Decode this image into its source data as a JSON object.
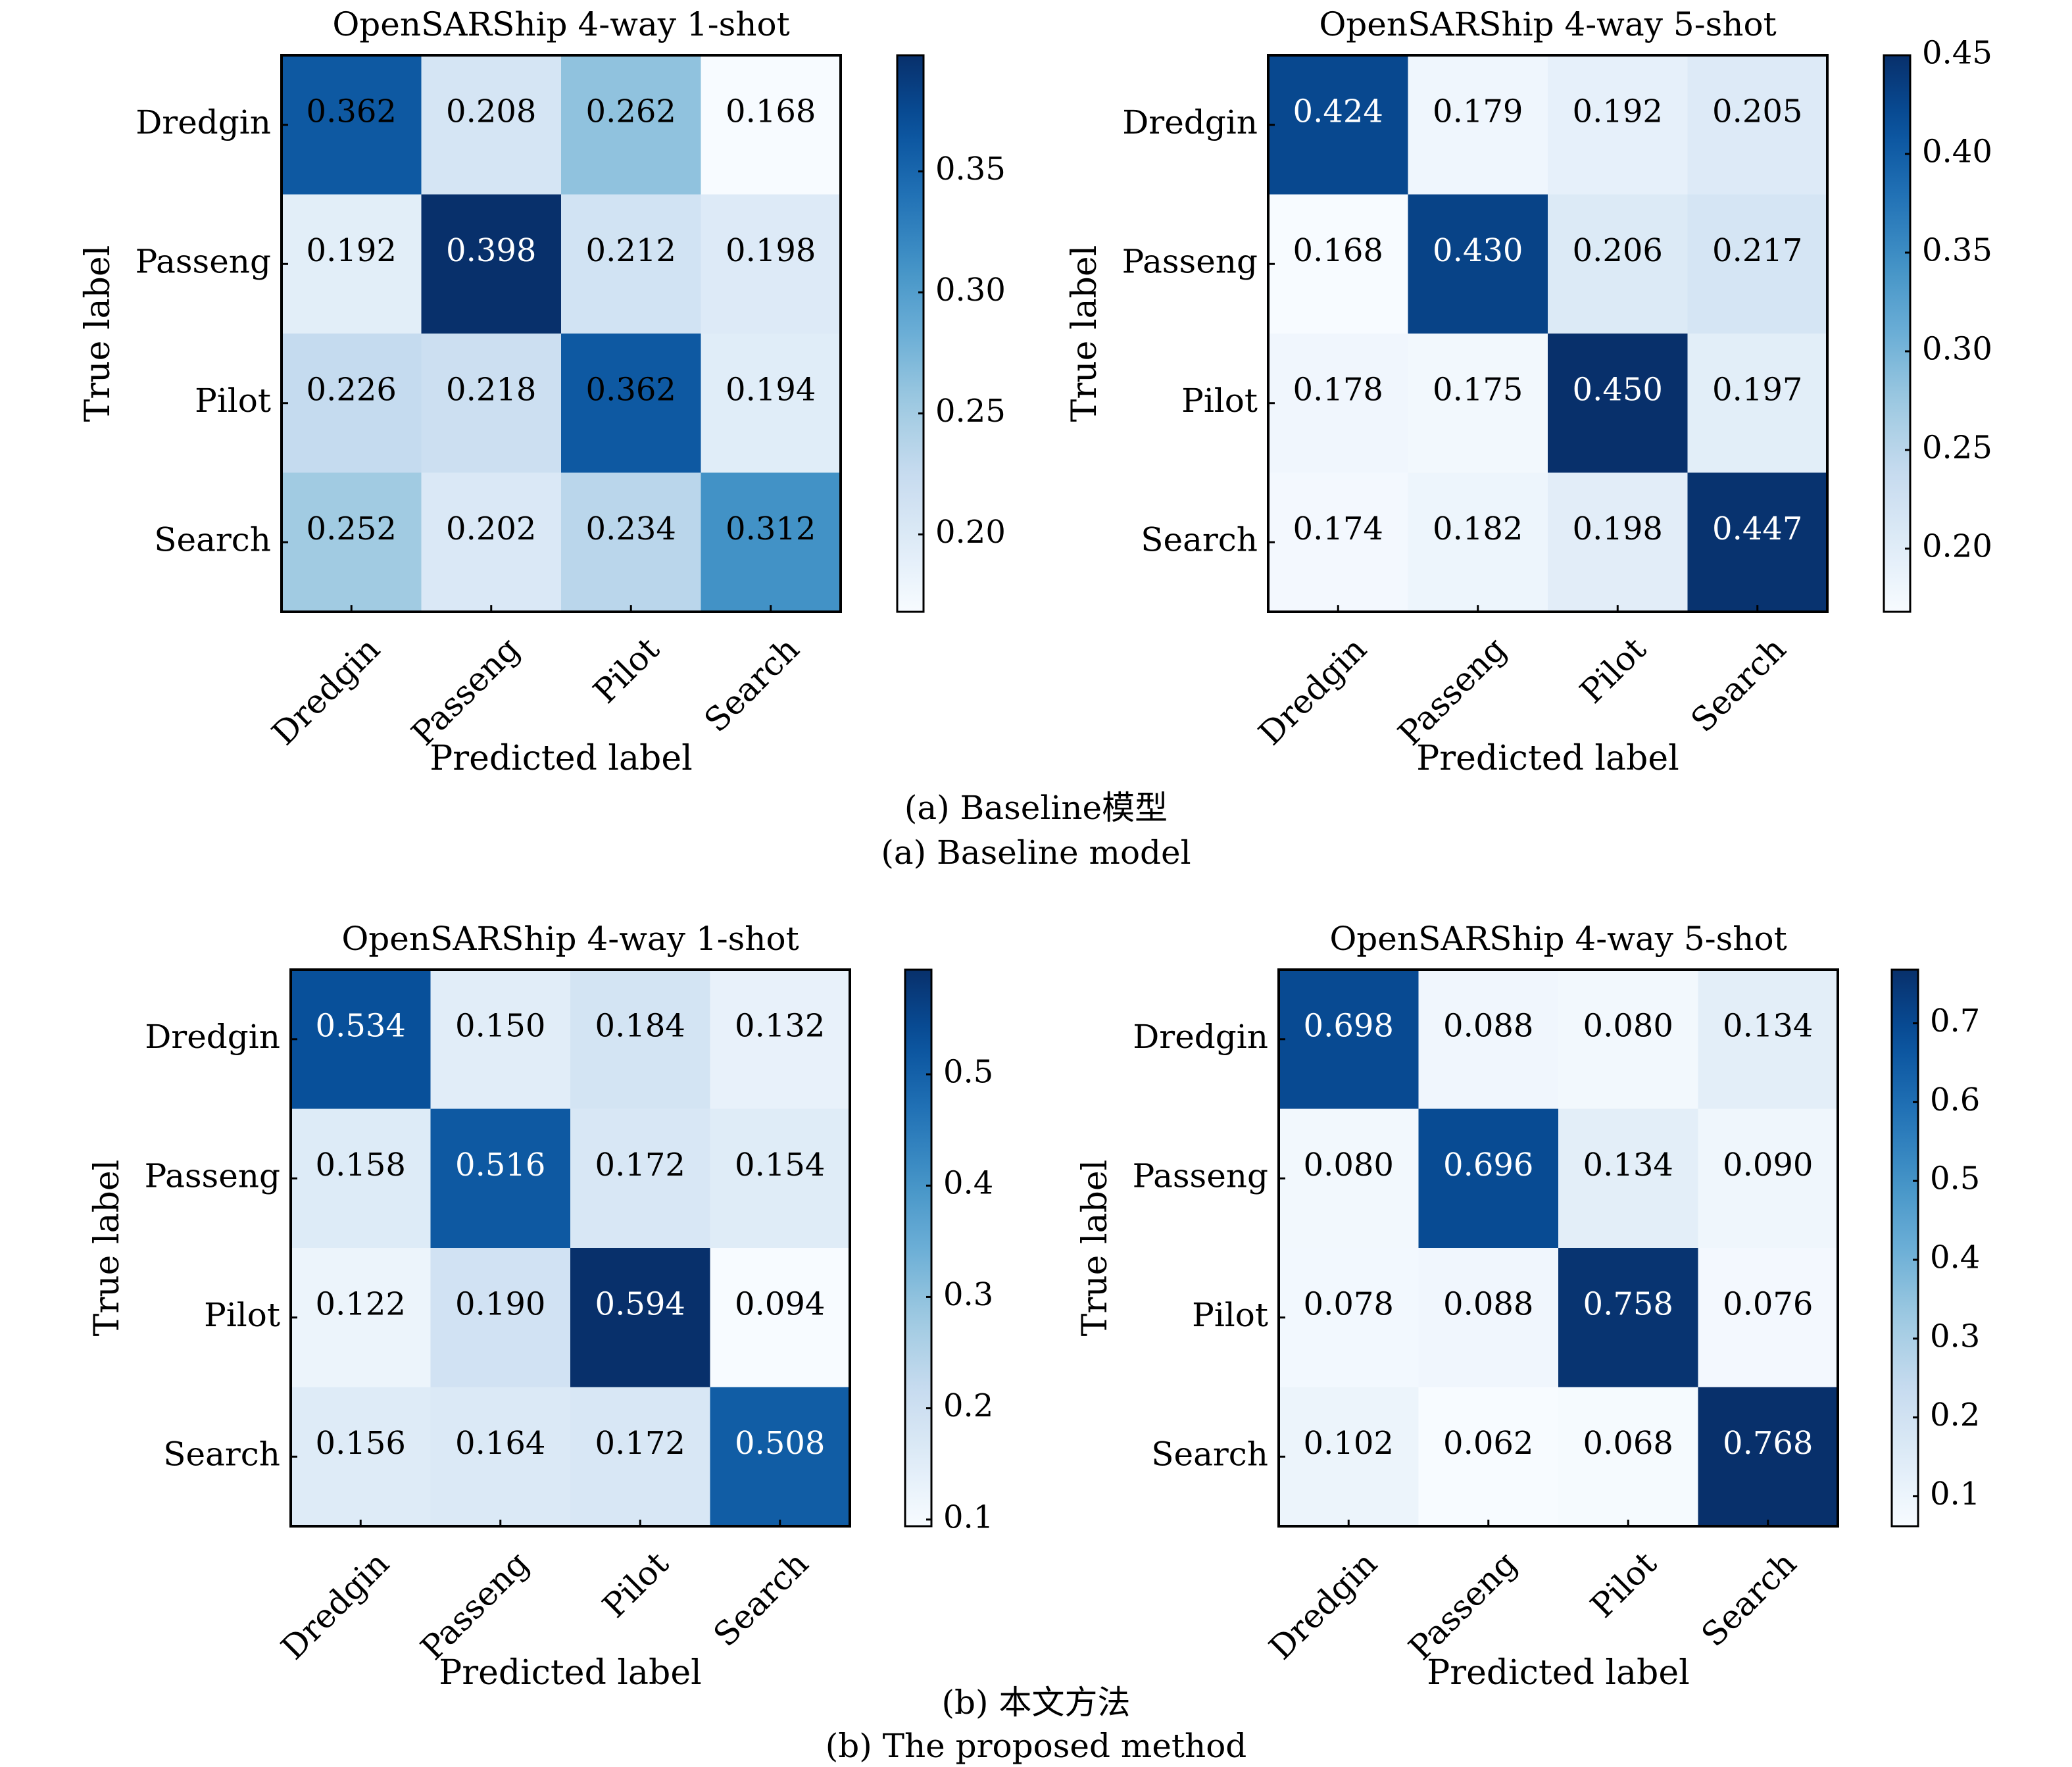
{
  "figure": {
    "group_a": {
      "caption_cn": "(a) Baseline模型",
      "caption_en": "(a) Baseline model"
    },
    "group_b": {
      "caption_cn": "(b) 本文方法",
      "caption_en": "(b) The proposed method"
    }
  },
  "chart_data": [
    {
      "type": "heatmap",
      "group": "a",
      "title": "OpenSARShip 4-way 1-shot",
      "xlabel": "Predicted label",
      "ylabel": "True label",
      "x_categories": [
        "Dredgin",
        "Passeng",
        "Pilot",
        "Search"
      ],
      "y_categories": [
        "Dredgin",
        "Passeng",
        "Pilot",
        "Search"
      ],
      "values": [
        [
          0.362,
          0.208,
          0.262,
          0.168
        ],
        [
          0.192,
          0.398,
          0.212,
          0.198
        ],
        [
          0.226,
          0.218,
          0.362,
          0.194
        ],
        [
          0.252,
          0.202,
          0.234,
          0.312
        ]
      ],
      "cell_labels": [
        [
          "0.362",
          "0.208",
          "0.262",
          "0.168"
        ],
        [
          "0.192",
          "0.398",
          "0.212",
          "0.198"
        ],
        [
          "0.226",
          "0.218",
          "0.362",
          "0.194"
        ],
        [
          "0.252",
          "0.202",
          "0.234",
          "0.312"
        ]
      ],
      "colormap": "Blues",
      "colorbar": {
        "range": [
          0.168,
          0.398
        ],
        "ticks": [
          0.2,
          0.25,
          0.3,
          0.35
        ],
        "tick_labels": [
          "0.20",
          "0.25",
          "0.30",
          "0.35"
        ]
      },
      "text_color_threshold": 0.9
    },
    {
      "type": "heatmap",
      "group": "a",
      "title": "OpenSARShip 4-way 5-shot",
      "xlabel": "Predicted label",
      "ylabel": "True label",
      "x_categories": [
        "Dredgin",
        "Passeng",
        "Pilot",
        "Search"
      ],
      "y_categories": [
        "Dredgin",
        "Passeng",
        "Pilot",
        "Search"
      ],
      "values": [
        [
          0.424,
          0.179,
          0.192,
          0.205
        ],
        [
          0.168,
          0.43,
          0.206,
          0.217
        ],
        [
          0.178,
          0.175,
          0.45,
          0.197
        ],
        [
          0.174,
          0.182,
          0.198,
          0.447
        ]
      ],
      "cell_labels": [
        [
          "0.424",
          "0.179",
          "0.192",
          "0.205"
        ],
        [
          "0.168",
          "0.430",
          "0.206",
          "0.217"
        ],
        [
          "0.178",
          "0.175",
          "0.450",
          "0.197"
        ],
        [
          "0.174",
          "0.182",
          "0.198",
          "0.447"
        ]
      ],
      "colormap": "Blues",
      "colorbar": {
        "range": [
          0.168,
          0.45
        ],
        "ticks": [
          0.2,
          0.25,
          0.3,
          0.35,
          0.4,
          0.45
        ],
        "tick_labels": [
          "0.20",
          "0.25",
          "0.30",
          "0.35",
          "0.40",
          "0.45"
        ]
      },
      "text_color_threshold": 0.9
    },
    {
      "type": "heatmap",
      "group": "b",
      "title": "OpenSARShip 4-way 1-shot",
      "xlabel": "Predicted label",
      "ylabel": "True label",
      "x_categories": [
        "Dredgin",
        "Passeng",
        "Pilot",
        "Search"
      ],
      "y_categories": [
        "Dredgin",
        "Passeng",
        "Pilot",
        "Search"
      ],
      "values": [
        [
          0.534,
          0.15,
          0.184,
          0.132
        ],
        [
          0.158,
          0.516,
          0.172,
          0.154
        ],
        [
          0.122,
          0.19,
          0.594,
          0.094
        ],
        [
          0.156,
          0.164,
          0.172,
          0.508
        ]
      ],
      "cell_labels": [
        [
          "0.534",
          "0.150",
          "0.184",
          "0.132"
        ],
        [
          "0.158",
          "0.516",
          "0.172",
          "0.154"
        ],
        [
          "0.122",
          "0.190",
          "0.594",
          "0.094"
        ],
        [
          "0.156",
          "0.164",
          "0.172",
          "0.508"
        ]
      ],
      "colormap": "Blues",
      "colorbar": {
        "range": [
          0.094,
          0.594
        ],
        "ticks": [
          0.1,
          0.2,
          0.3,
          0.4,
          0.5
        ],
        "tick_labels": [
          "0.1",
          "0.2",
          "0.3",
          "0.4",
          "0.5"
        ]
      },
      "text_color_threshold": 0.5
    },
    {
      "type": "heatmap",
      "group": "b",
      "title": "OpenSARShip 4-way 5-shot",
      "xlabel": "Predicted label",
      "ylabel": "True label",
      "x_categories": [
        "Dredgin",
        "Passeng",
        "Pilot",
        "Search"
      ],
      "y_categories": [
        "Dredgin",
        "Passeng",
        "Pilot",
        "Search"
      ],
      "values": [
        [
          0.698,
          0.088,
          0.08,
          0.134
        ],
        [
          0.08,
          0.696,
          0.134,
          0.09
        ],
        [
          0.078,
          0.088,
          0.758,
          0.076
        ],
        [
          0.102,
          0.062,
          0.068,
          0.768
        ]
      ],
      "cell_labels": [
        [
          "0.698",
          "0.088",
          "0.080",
          "0.134"
        ],
        [
          "0.080",
          "0.696",
          "0.134",
          "0.090"
        ],
        [
          "0.078",
          "0.088",
          "0.758",
          "0.076"
        ],
        [
          "0.102",
          "0.062",
          "0.068",
          "0.768"
        ]
      ],
      "colormap": "Blues",
      "colorbar": {
        "range": [
          0.062,
          0.768
        ],
        "ticks": [
          0.1,
          0.2,
          0.3,
          0.4,
          0.5,
          0.6,
          0.7
        ],
        "tick_labels": [
          "0.1",
          "0.2",
          "0.3",
          "0.4",
          "0.5",
          "0.6",
          "0.7"
        ]
      },
      "text_color_threshold": 0.5
    }
  ]
}
